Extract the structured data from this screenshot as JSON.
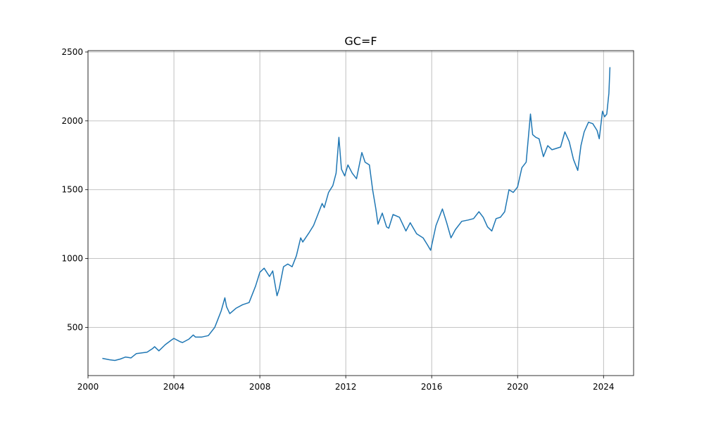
{
  "chart_data": {
    "type": "line",
    "title": "GC=F",
    "xlabel": "",
    "ylabel": "",
    "x_ticks": [
      "2000",
      "2004",
      "2008",
      "2012",
      "2016",
      "2020",
      "2024"
    ],
    "y_ticks": [
      "500",
      "1000",
      "1500",
      "2000",
      "2500"
    ],
    "xlim": [
      2000,
      2025.4
    ],
    "ylim": [
      150,
      2510
    ],
    "grid": true,
    "series": [
      {
        "color": "#1f77b4",
        "x": [
          2000.67,
          2001.0,
          2001.25,
          2001.5,
          2001.75,
          2002.0,
          2002.25,
          2002.5,
          2002.75,
          2003.0,
          2003.1,
          2003.3,
          2003.6,
          2003.9,
          2004.0,
          2004.3,
          2004.4,
          2004.7,
          2004.9,
          2005.0,
          2005.3,
          2005.6,
          2005.9,
          2006.0,
          2006.2,
          2006.37,
          2006.45,
          2006.6,
          2006.9,
          2007.2,
          2007.5,
          2007.8,
          2008.0,
          2008.2,
          2008.45,
          2008.6,
          2008.8,
          2008.9,
          2009.1,
          2009.3,
          2009.5,
          2009.7,
          2009.9,
          2010.0,
          2010.3,
          2010.5,
          2010.7,
          2010.9,
          2011.0,
          2011.2,
          2011.4,
          2011.55,
          2011.68,
          2011.8,
          2011.95,
          2012.1,
          2012.3,
          2012.5,
          2012.75,
          2012.9,
          2013.1,
          2013.25,
          2013.4,
          2013.5,
          2013.7,
          2013.9,
          2014.0,
          2014.2,
          2014.5,
          2014.8,
          2015.0,
          2015.3,
          2015.6,
          2015.8,
          2015.95,
          2016.2,
          2016.5,
          2016.7,
          2016.9,
          2017.1,
          2017.4,
          2017.7,
          2017.95,
          2018.2,
          2018.4,
          2018.6,
          2018.8,
          2019.0,
          2019.2,
          2019.4,
          2019.6,
          2019.8,
          2020.0,
          2020.2,
          2020.4,
          2020.6,
          2020.7,
          2020.85,
          2021.0,
          2021.2,
          2021.4,
          2021.6,
          2021.8,
          2022.0,
          2022.2,
          2022.4,
          2022.6,
          2022.8,
          2022.95,
          2023.1,
          2023.3,
          2023.5,
          2023.7,
          2023.8,
          2023.95,
          2024.05,
          2024.15,
          2024.25,
          2024.3
        ],
        "y": [
          275,
          265,
          260,
          270,
          285,
          278,
          310,
          315,
          320,
          345,
          360,
          330,
          375,
          410,
          420,
          395,
          390,
          415,
          445,
          430,
          430,
          440,
          500,
          540,
          620,
          715,
          650,
          600,
          640,
          665,
          680,
          800,
          900,
          930,
          870,
          910,
          730,
          780,
          940,
          960,
          940,
          1020,
          1150,
          1120,
          1190,
          1240,
          1320,
          1400,
          1370,
          1480,
          1530,
          1620,
          1880,
          1650,
          1600,
          1680,
          1620,
          1580,
          1770,
          1700,
          1680,
          1500,
          1360,
          1250,
          1330,
          1230,
          1220,
          1320,
          1300,
          1200,
          1260,
          1180,
          1150,
          1100,
          1060,
          1240,
          1360,
          1260,
          1150,
          1210,
          1270,
          1280,
          1290,
          1340,
          1300,
          1230,
          1200,
          1290,
          1300,
          1340,
          1500,
          1480,
          1520,
          1660,
          1700,
          2050,
          1900,
          1880,
          1870,
          1740,
          1820,
          1790,
          1800,
          1810,
          1920,
          1850,
          1720,
          1640,
          1820,
          1920,
          1990,
          1980,
          1930,
          1870,
          2070,
          2030,
          2050,
          2200,
          2390
        ]
      }
    ]
  }
}
